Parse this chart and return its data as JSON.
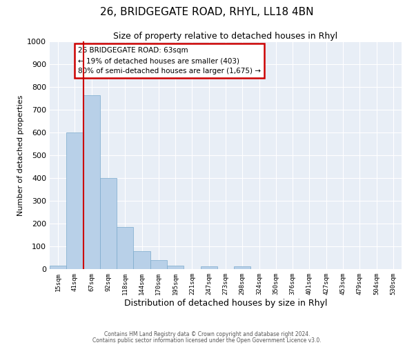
{
  "title1": "26, BRIDGEGATE ROAD, RHYL, LL18 4BN",
  "title2": "Size of property relative to detached houses in Rhyl",
  "xlabel": "Distribution of detached houses by size in Rhyl",
  "ylabel": "Number of detached properties",
  "bar_color": "#b8d0e8",
  "bar_edgecolor": "#7aaacc",
  "background_color": "#e8eef6",
  "grid_color": "#ffffff",
  "vline_color": "#cc0000",
  "vline_x": 1.5,
  "annotation_lines": [
    "26 BRIDGEGATE ROAD: 63sqm",
    "← 19% of detached houses are smaller (403)",
    "80% of semi-detached houses are larger (1,675) →"
  ],
  "categories": [
    "15sqm",
    "41sqm",
    "67sqm",
    "92sqm",
    "118sqm",
    "144sqm",
    "170sqm",
    "195sqm",
    "221sqm",
    "247sqm",
    "273sqm",
    "298sqm",
    "324sqm",
    "350sqm",
    "376sqm",
    "401sqm",
    "427sqm",
    "453sqm",
    "479sqm",
    "504sqm",
    "530sqm"
  ],
  "bar_heights": [
    15,
    600,
    765,
    400,
    185,
    78,
    40,
    15,
    0,
    12,
    0,
    12,
    0,
    0,
    0,
    0,
    0,
    0,
    0,
    0,
    0
  ],
  "ylim": [
    0,
    1000
  ],
  "yticks": [
    0,
    100,
    200,
    300,
    400,
    500,
    600,
    700,
    800,
    900,
    1000
  ],
  "footer1": "Contains HM Land Registry data © Crown copyright and database right 2024.",
  "footer2": "Contains public sector information licensed under the Open Government Licence v3.0."
}
